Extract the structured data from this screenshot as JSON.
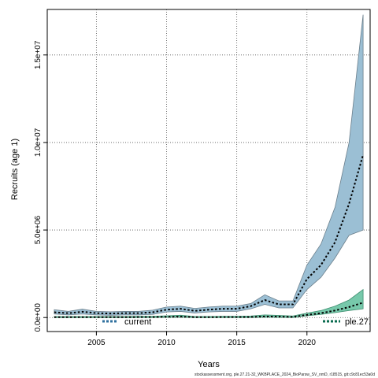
{
  "chart_data": {
    "type": "area",
    "xlabel": "Years",
    "ylabel": "Recruits (age 1)",
    "xlim": [
      2001.5,
      2024.5
    ],
    "ylim": [
      -800000,
      17600000
    ],
    "x_ticks": [
      2005,
      2010,
      2015,
      2020
    ],
    "y_ticks": [
      0,
      5000000,
      10000000,
      15000000
    ],
    "y_tick_labels": [
      "0.0e+00",
      "5.0e+06",
      "1.0e+07",
      "1.5e+07"
    ],
    "grid": true,
    "legend": [
      {
        "label": "current",
        "color": "#2e6f9e",
        "placement": "bottom-left"
      },
      {
        "label": "ple.27.",
        "color": "#0a6b4f",
        "placement": "bottom-right"
      }
    ],
    "series": [
      {
        "name": "current",
        "fill_color": "#9bbfd4",
        "edge_color": "#6b7f8c",
        "x": [
          2002,
          2003,
          2004,
          2005,
          2006,
          2007,
          2008,
          2009,
          2010,
          2011,
          2012,
          2013,
          2014,
          2015,
          2016,
          2017,
          2018,
          2019,
          2020,
          2021,
          2022,
          2023,
          2024
        ],
        "y": [
          300000,
          250000,
          330000,
          250000,
          230000,
          250000,
          250000,
          300000,
          450000,
          500000,
          380000,
          450000,
          500000,
          500000,
          650000,
          1000000,
          750000,
          750000,
          2200000,
          3000000,
          4300000,
          6500000,
          9300000
        ],
        "lower": [
          200000,
          150000,
          200000,
          150000,
          130000,
          150000,
          150000,
          180000,
          320000,
          350000,
          260000,
          320000,
          350000,
          350000,
          500000,
          750000,
          550000,
          550000,
          1600000,
          2300000,
          3400000,
          4700000,
          5000000
        ],
        "upper": [
          450000,
          350000,
          480000,
          350000,
          330000,
          350000,
          350000,
          420000,
          600000,
          650000,
          520000,
          600000,
          650000,
          650000,
          800000,
          1300000,
          950000,
          950000,
          3000000,
          4200000,
          6300000,
          10000000,
          17300000
        ]
      },
      {
        "name": "ple.27.",
        "fill_color": "#5fbf9c",
        "edge_color": "#3f8f70",
        "x": [
          2002,
          2003,
          2004,
          2005,
          2006,
          2007,
          2008,
          2009,
          2010,
          2011,
          2012,
          2013,
          2014,
          2015,
          2016,
          2017,
          2018,
          2019,
          2020,
          2021,
          2022,
          2023,
          2024
        ],
        "y": [
          20000,
          20000,
          20000,
          20000,
          20000,
          20000,
          25000,
          25000,
          40000,
          50000,
          20000,
          20000,
          25000,
          25000,
          30000,
          60000,
          50000,
          30000,
          150000,
          250000,
          400000,
          600000,
          850000
        ],
        "lower": [
          0,
          0,
          0,
          0,
          0,
          0,
          0,
          0,
          10000,
          20000,
          0,
          0,
          0,
          0,
          0,
          20000,
          10000,
          0,
          100000,
          180000,
          280000,
          400000,
          500000
        ],
        "upper": [
          60000,
          60000,
          60000,
          60000,
          60000,
          60000,
          70000,
          70000,
          100000,
          130000,
          60000,
          60000,
          70000,
          70000,
          90000,
          150000,
          120000,
          90000,
          250000,
          400000,
          650000,
          1000000,
          1600000
        ]
      }
    ]
  },
  "footer_text": "stockassessment.org, ple.27.21-32_WKBPLACE_2024_BioParsw_SV_nmD, r18515, git:c9c81ec53a0d"
}
